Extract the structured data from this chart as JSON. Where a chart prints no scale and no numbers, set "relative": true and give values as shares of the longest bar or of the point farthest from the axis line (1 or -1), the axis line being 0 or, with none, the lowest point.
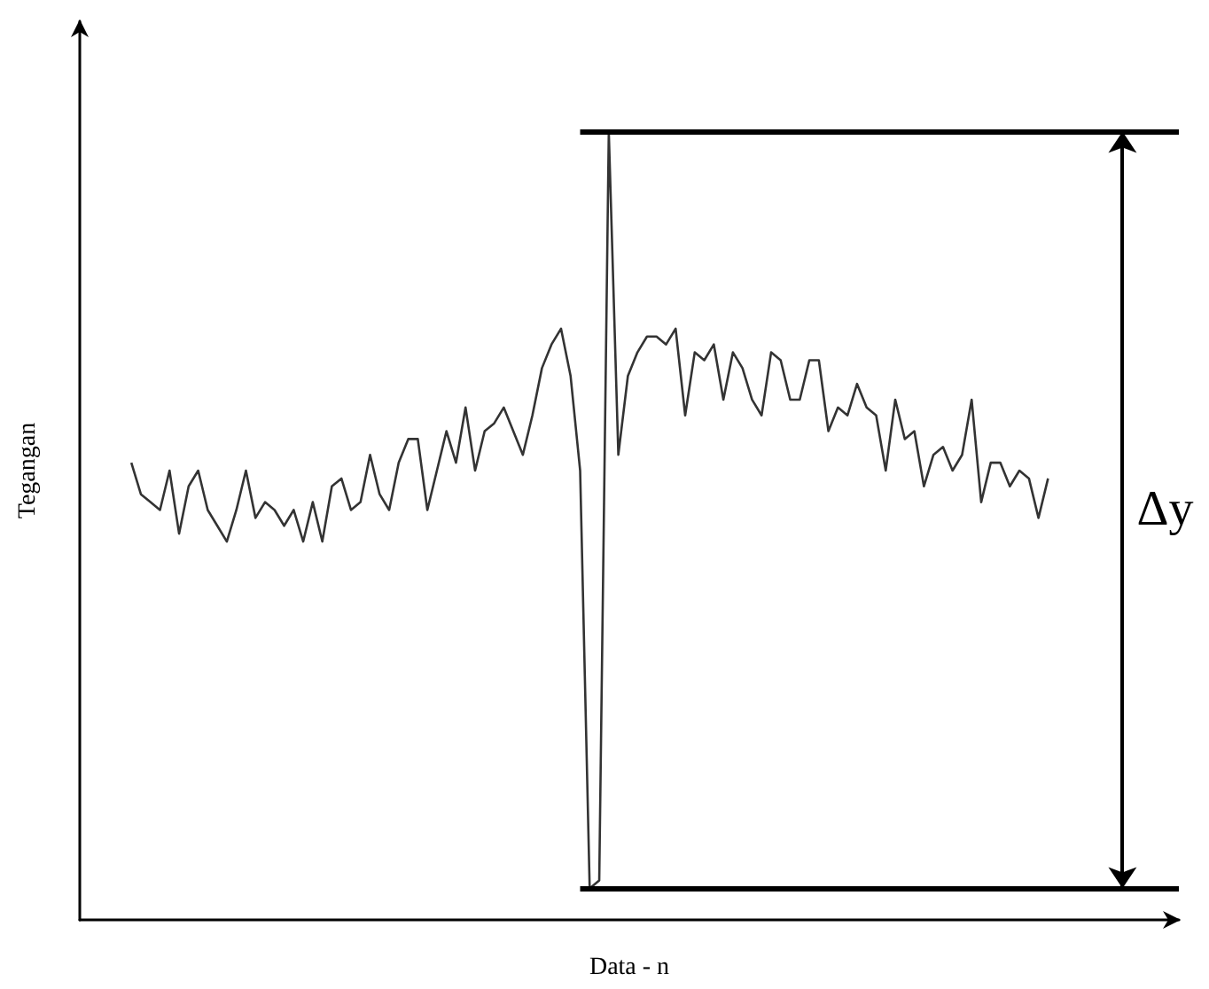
{
  "chart_data": {
    "type": "line",
    "relative": true,
    "xlabel": "Data - n",
    "ylabel": "Tegangan",
    "annotations": [
      "Δy"
    ],
    "grid": false,
    "categories": [
      null,
      null,
      null,
      null,
      null,
      null,
      null,
      null,
      null,
      null,
      null,
      null,
      null,
      null,
      null,
      null,
      null,
      null,
      null,
      null,
      null,
      null,
      null,
      null,
      null,
      null,
      null,
      null,
      null,
      null,
      null,
      null,
      null,
      null,
      null,
      null,
      null,
      null,
      null,
      null,
      null,
      null,
      null,
      null,
      null,
      null,
      null,
      null,
      null,
      null,
      null,
      null,
      null,
      null,
      null,
      null,
      null,
      null,
      null,
      null,
      null,
      null,
      null,
      null,
      null,
      null,
      null,
      null,
      null,
      null,
      null,
      null,
      null,
      null,
      null,
      null,
      null,
      null,
      null,
      null,
      null,
      null,
      null,
      null,
      null,
      null,
      null,
      null,
      null,
      null,
      null,
      null,
      null,
      null,
      null,
      null,
      null
    ],
    "series": [
      {
        "color": "#333333",
        "values": [
          0.58,
          0.54,
          0.53,
          0.52,
          0.57,
          0.49,
          0.55,
          0.57,
          0.52,
          0.5,
          0.48,
          0.52,
          0.57,
          0.51,
          0.53,
          0.52,
          0.5,
          0.52,
          0.48,
          0.53,
          0.48,
          0.55,
          0.56,
          0.52,
          0.53,
          0.59,
          0.54,
          0.52,
          0.58,
          0.61,
          0.61,
          0.52,
          0.57,
          0.62,
          0.58,
          0.65,
          0.57,
          0.62,
          0.63,
          0.65,
          0.62,
          0.59,
          0.64,
          0.7,
          0.73,
          0.75,
          0.69,
          0.57,
          0.04,
          0.05,
          1.0,
          0.59,
          0.69,
          0.72,
          0.74,
          0.74,
          0.73,
          0.75,
          0.64,
          0.72,
          0.71,
          0.73,
          0.66,
          0.72,
          0.7,
          0.66,
          0.64,
          0.72,
          0.71,
          0.66,
          0.66,
          0.71,
          0.71,
          0.62,
          0.65,
          0.64,
          0.68,
          0.65,
          0.64,
          0.57,
          0.66,
          0.61,
          0.62,
          0.55,
          0.59,
          0.6,
          0.57,
          0.59,
          0.66,
          0.53,
          0.58,
          0.58,
          0.55,
          0.57,
          0.56,
          0.51,
          0.56
        ]
      }
    ],
    "ref_lines": [
      {
        "axis": "y",
        "value": 1.0,
        "color": "#000000"
      },
      {
        "axis": "y",
        "value": 0.04,
        "color": "#000000"
      }
    ]
  }
}
